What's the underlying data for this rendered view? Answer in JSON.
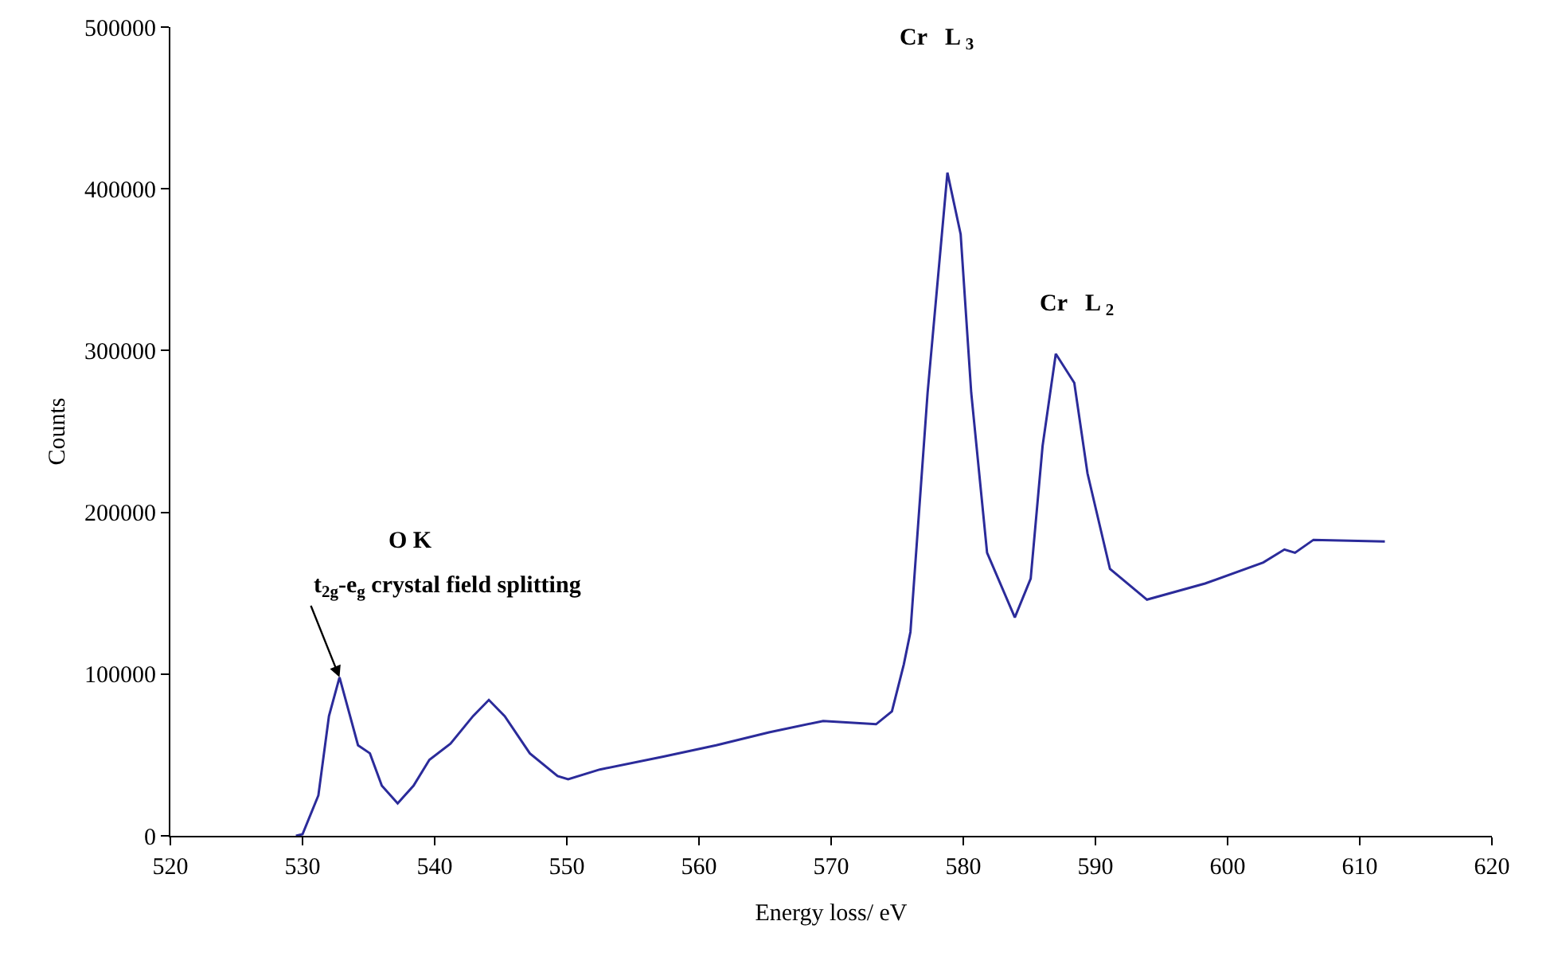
{
  "chart_data": {
    "type": "line",
    "xlabel": "Energy loss/ eV",
    "ylabel": "Counts",
    "series": [
      {
        "color": "#2b2b9a",
        "x": [
          529.5,
          530.0,
          531.2,
          532.0,
          532.8,
          533.6,
          534.2,
          535.1,
          536.0,
          537.2,
          538.4,
          539.6,
          541.2,
          542.9,
          544.1,
          545.3,
          547.2,
          549.3,
          550.1,
          552.5,
          557.3,
          561.3,
          565.3,
          569.4,
          573.4,
          574.6,
          575.5,
          576.0,
          577.3,
          578.8,
          579.8,
          580.6,
          581.8,
          583.9,
          585.1,
          586.0,
          587.0,
          588.4,
          589.4,
          591.1,
          593.9,
          598.3,
          602.7,
          604.3,
          605.1,
          606.5,
          611.9
        ],
        "values": [
          0,
          1000,
          25000,
          74000,
          98000,
          74000,
          56000,
          51000,
          31000,
          20000,
          31000,
          47000,
          57000,
          74000,
          84000,
          74000,
          51000,
          37000,
          35000,
          41000,
          49000,
          56000,
          64000,
          71000,
          69000,
          77000,
          106000,
          126000,
          274000,
          410000,
          372000,
          274000,
          175000,
          135000,
          159000,
          241000,
          298000,
          280000,
          224000,
          165000,
          146000,
          156000,
          169000,
          177000,
          175000,
          183000,
          182000
        ]
      }
    ],
    "xlim": [
      520,
      620
    ],
    "xticks": [
      520,
      530,
      540,
      550,
      560,
      570,
      580,
      590,
      600,
      610,
      620
    ],
    "ylim": [
      0,
      500000
    ],
    "yticks": [
      0,
      100000,
      200000,
      300000,
      400000,
      500000
    ],
    "marker": "none",
    "line_style": "solid",
    "annotations": [
      "Cr   L $_{3}$",
      "Cr   L $_{2}$",
      "O K",
      {
        "text": "t$_{2g}$-e$_{g}$ crystal field splitting",
        "x": 532.8,
        "y": 98000
      }
    ]
  }
}
